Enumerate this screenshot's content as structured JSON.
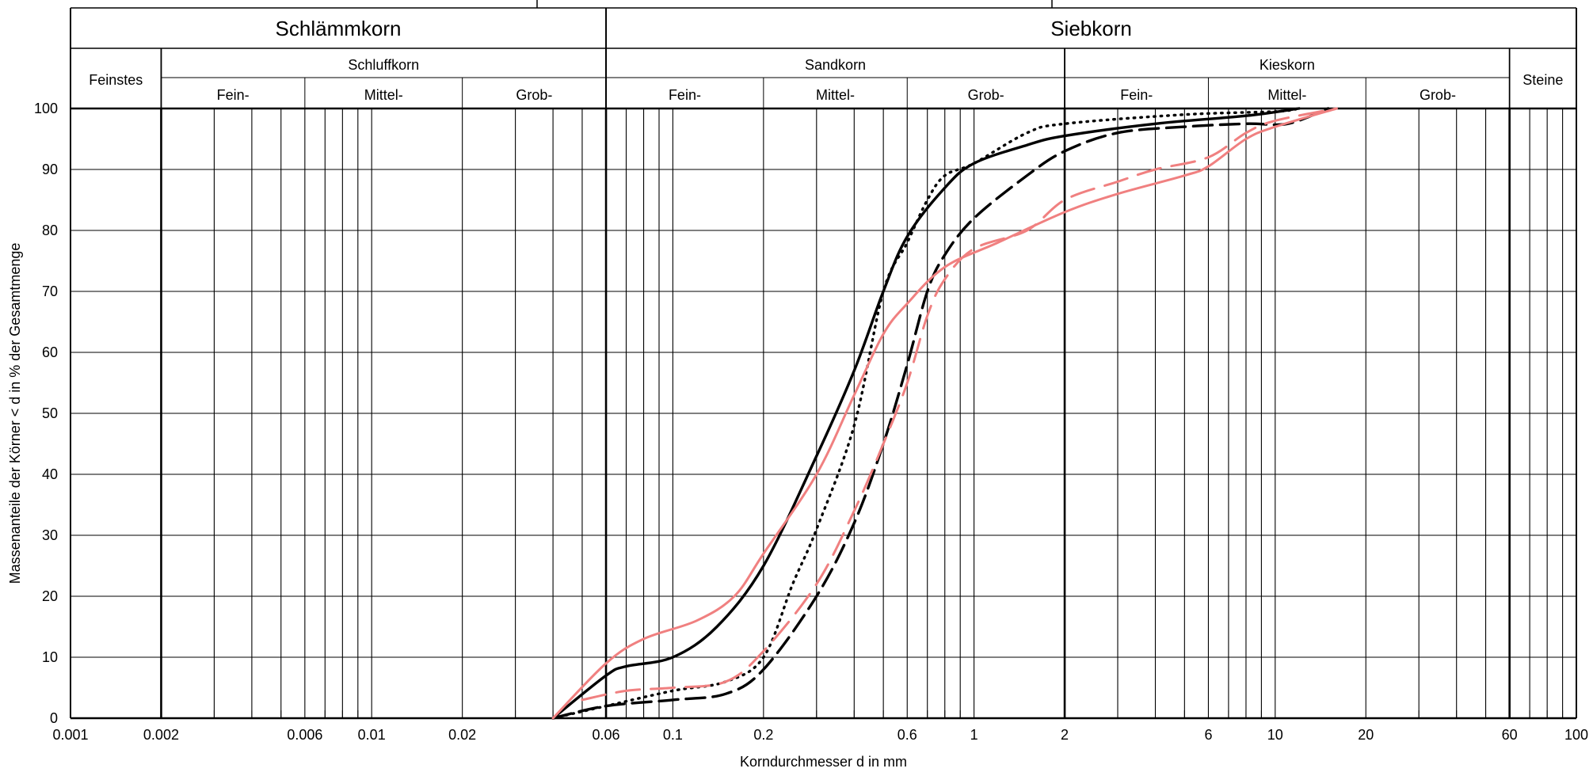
{
  "chart_data": {
    "type": "line",
    "title": "",
    "xlabel": "Korndurchmesser d in mm",
    "ylabel": "Massenanteile der Körner < d in % der Gesamtmenge",
    "x_scale": "log",
    "xlim": [
      0.001,
      100
    ],
    "ylim": [
      0,
      100
    ],
    "grid": true,
    "x_ticks": [
      0.001,
      0.002,
      0.006,
      0.01,
      0.02,
      0.06,
      0.1,
      0.2,
      0.6,
      1,
      2,
      6,
      10,
      20,
      60,
      100
    ],
    "x_tick_labels": [
      "0.001",
      "0.002",
      "0.006",
      "0.01",
      "0.02",
      "0.06",
      "0.1",
      "0.2",
      "0.6",
      "1",
      "2",
      "6",
      "10",
      "20",
      "60",
      "100"
    ],
    "y_ticks": [
      0,
      10,
      20,
      30,
      40,
      50,
      60,
      70,
      80,
      90,
      100
    ],
    "y_tick_labels": [
      "0",
      "10",
      "20",
      "30",
      "40",
      "50",
      "60",
      "70",
      "80",
      "90",
      "100"
    ],
    "header": {
      "main_groups": [
        {
          "label": "Schlämmkorn",
          "from": 0.001,
          "to": 0.06
        },
        {
          "label": "Siebkorn",
          "from": 0.06,
          "to": 100
        }
      ],
      "sub_groups": [
        {
          "label": "Feinstes",
          "from": 0.001,
          "to": 0.002,
          "spans_rows": true
        },
        {
          "label": "Schluffkorn",
          "from": 0.002,
          "to": 0.06
        },
        {
          "label": "Sandkorn",
          "from": 0.06,
          "to": 2
        },
        {
          "label": "Kieskorn",
          "from": 2,
          "to": 60
        },
        {
          "label": "Steine",
          "from": 60,
          "to": 100,
          "spans_rows": true
        }
      ],
      "fractions": [
        {
          "label": "Fein-",
          "from": 0.002,
          "to": 0.006
        },
        {
          "label": "Mittel-",
          "from": 0.006,
          "to": 0.02
        },
        {
          "label": "Grob-",
          "from": 0.02,
          "to": 0.06
        },
        {
          "label": "Fein-",
          "from": 0.06,
          "to": 0.2
        },
        {
          "label": "Mittel-",
          "from": 0.2,
          "to": 0.6
        },
        {
          "label": "Grob-",
          "from": 0.6,
          "to": 2
        },
        {
          "label": "Fein-",
          "from": 2,
          "to": 6
        },
        {
          "label": "Mittel-",
          "from": 6,
          "to": 20
        },
        {
          "label": "Grob-",
          "from": 20,
          "to": 60
        }
      ]
    },
    "series": [
      {
        "color": "#000000",
        "style": "solid",
        "points": [
          [
            0.04,
            0
          ],
          [
            0.06,
            7
          ],
          [
            0.07,
            8.5
          ],
          [
            0.1,
            10
          ],
          [
            0.14,
            15
          ],
          [
            0.2,
            25
          ],
          [
            0.3,
            43
          ],
          [
            0.4,
            57
          ],
          [
            0.5,
            70
          ],
          [
            0.6,
            79
          ],
          [
            0.8,
            87
          ],
          [
            1,
            91
          ],
          [
            1.5,
            94
          ],
          [
            2,
            95.5
          ],
          [
            4,
            97.5
          ],
          [
            8,
            98.8
          ],
          [
            12,
            100
          ]
        ]
      },
      {
        "color": "#000000",
        "style": "dotted",
        "points": [
          [
            0.04,
            0
          ],
          [
            0.06,
            2
          ],
          [
            0.1,
            4.5
          ],
          [
            0.15,
            6
          ],
          [
            0.2,
            10
          ],
          [
            0.25,
            22
          ],
          [
            0.3,
            31
          ],
          [
            0.4,
            48
          ],
          [
            0.5,
            70
          ],
          [
            0.6,
            78
          ],
          [
            0.7,
            85
          ],
          [
            0.8,
            89
          ],
          [
            1,
            91
          ],
          [
            1.5,
            96
          ],
          [
            2,
            97.5
          ],
          [
            5,
            99
          ],
          [
            10,
            99.5
          ],
          [
            12,
            100
          ]
        ]
      },
      {
        "color": "#000000",
        "style": "dashed",
        "points": [
          [
            0.04,
            0
          ],
          [
            0.06,
            2
          ],
          [
            0.1,
            3
          ],
          [
            0.15,
            4
          ],
          [
            0.2,
            8
          ],
          [
            0.3,
            20
          ],
          [
            0.4,
            32
          ],
          [
            0.5,
            45
          ],
          [
            0.6,
            58
          ],
          [
            0.7,
            70
          ],
          [
            0.8,
            76
          ],
          [
            1,
            82
          ],
          [
            1.5,
            89
          ],
          [
            2,
            93
          ],
          [
            3,
            96
          ],
          [
            5,
            97
          ],
          [
            8,
            97.5
          ],
          [
            11,
            97.5
          ],
          [
            15,
            100
          ]
        ]
      },
      {
        "color": "#f08080",
        "style": "solid",
        "points": [
          [
            0.04,
            0
          ],
          [
            0.06,
            9
          ],
          [
            0.08,
            13
          ],
          [
            0.12,
            16
          ],
          [
            0.16,
            20
          ],
          [
            0.2,
            27
          ],
          [
            0.3,
            40
          ],
          [
            0.4,
            53
          ],
          [
            0.5,
            63
          ],
          [
            0.6,
            68
          ],
          [
            0.8,
            74
          ],
          [
            1.2,
            78
          ],
          [
            2,
            83
          ],
          [
            3,
            86
          ],
          [
            5,
            89
          ],
          [
            6,
            90.5
          ],
          [
            8,
            95
          ],
          [
            10,
            97
          ],
          [
            16,
            100
          ]
        ]
      },
      {
        "color": "#f08080",
        "style": "dashed-long",
        "points": [
          [
            0.05,
            3
          ],
          [
            0.07,
            4.5
          ],
          [
            0.1,
            5
          ],
          [
            0.15,
            6
          ],
          [
            0.2,
            11
          ],
          [
            0.3,
            22
          ],
          [
            0.4,
            34
          ],
          [
            0.5,
            45
          ],
          [
            0.6,
            55
          ],
          [
            0.7,
            66
          ],
          [
            0.8,
            72
          ],
          [
            1,
            77
          ],
          [
            1.5,
            80
          ],
          [
            2,
            85
          ],
          [
            3,
            88
          ],
          [
            4,
            90
          ],
          [
            6,
            92
          ],
          [
            8,
            96
          ],
          [
            10,
            98
          ],
          [
            16,
            100
          ]
        ]
      }
    ]
  }
}
